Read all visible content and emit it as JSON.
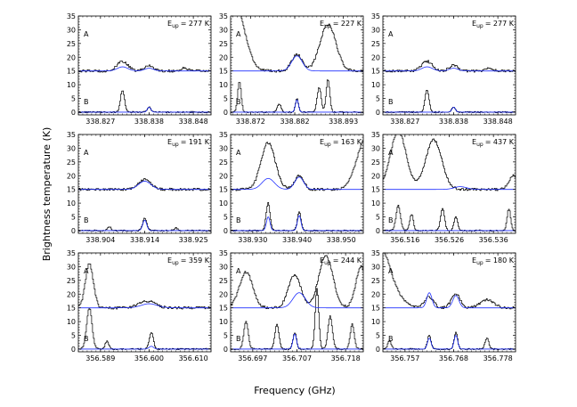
{
  "figure": {
    "xlabel": "Frequency (GHz)",
    "ylabel": "Brightness temperature (K)"
  },
  "colors": {
    "observed": "#000000",
    "model": "#1f2fff",
    "axes": "#000000"
  },
  "chart_data": [
    {
      "type": "line",
      "eup_base": "E",
      "eup_sub": "up",
      "eup_value": "= 277 K",
      "xlim": [
        338.822,
        338.852
      ],
      "ylim": [
        -1,
        35
      ],
      "xticks": [
        "338.827",
        "338.838",
        "338.848"
      ],
      "yticks": [
        "0",
        "5",
        "10",
        "15",
        "20",
        "25",
        "30",
        "35"
      ],
      "label_a": "A",
      "label_b": "B",
      "offset_a": 15,
      "lines_a": [
        [
          338.832,
          3.5,
          0.0012
        ],
        [
          338.838,
          2.0,
          0.001
        ],
        [
          338.846,
          1.0,
          0.0008
        ]
      ],
      "lines_b": [
        [
          338.832,
          8.0,
          0.00045
        ],
        [
          338.838,
          2.0,
          0.0004
        ]
      ],
      "model_a": [
        [
          338.832,
          1.5,
          0.0012
        ],
        [
          338.838,
          1.0,
          0.001
        ]
      ],
      "model_b": [
        [
          338.838,
          1.8,
          0.0004
        ]
      ]
    },
    {
      "type": "line",
      "eup_base": "E",
      "eup_sub": "up",
      "eup_value": "= 227 K",
      "xlim": [
        338.8675,
        338.8975
      ],
      "ylim": [
        -1,
        35
      ],
      "xticks": [
        "338.872",
        "338.882",
        "338.893"
      ],
      "yticks": [
        "0",
        "5",
        "10",
        "15",
        "20",
        "25",
        "30",
        "35"
      ],
      "label_a": "A",
      "label_b": "B",
      "offset_a": 15,
      "lines_a": [
        [
          338.8685,
          24,
          0.0022
        ],
        [
          338.8825,
          6,
          0.0012
        ],
        [
          338.8895,
          17,
          0.0018
        ]
      ],
      "lines_b": [
        [
          338.8695,
          11,
          0.0004
        ],
        [
          338.8785,
          3,
          0.0004
        ],
        [
          338.8825,
          5,
          0.00035
        ],
        [
          338.8875,
          9,
          0.00045
        ],
        [
          338.8895,
          12,
          0.0004
        ]
      ],
      "model_a": [
        [
          338.8825,
          5.5,
          0.0012
        ]
      ],
      "model_b": [
        [
          338.8825,
          4.5,
          0.00035
        ]
      ]
    },
    {
      "type": "line",
      "eup_base": "E",
      "eup_sub": "up",
      "eup_value": "= 277 K",
      "xlim": [
        338.822,
        338.852
      ],
      "ylim": [
        -1,
        35
      ],
      "xticks": [
        "338.827",
        "338.838",
        "338.848"
      ],
      "yticks": [
        "0",
        "5",
        "10",
        "15",
        "20",
        "25",
        "30",
        "35"
      ],
      "label_a": "A",
      "label_b": "B",
      "offset_a": 15,
      "lines_a": [
        [
          338.832,
          3.5,
          0.0012
        ],
        [
          338.838,
          2.0,
          0.001
        ],
        [
          338.846,
          1.0,
          0.0008
        ]
      ],
      "lines_b": [
        [
          338.832,
          8.0,
          0.00045
        ],
        [
          338.838,
          2.0,
          0.0004
        ]
      ],
      "model_a": [
        [
          338.832,
          1.5,
          0.0012
        ],
        [
          338.838,
          1.0,
          0.001
        ]
      ],
      "model_b": [
        [
          338.838,
          1.8,
          0.0004
        ]
      ]
    },
    {
      "type": "line",
      "eup_base": "E",
      "eup_sub": "up",
      "eup_value": "= 191 K",
      "xlim": [
        338.899,
        338.929
      ],
      "ylim": [
        -1,
        35
      ],
      "xticks": [
        "338.904",
        "338.914",
        "338.925"
      ],
      "yticks": [
        "0",
        "5",
        "10",
        "15",
        "20",
        "25",
        "30",
        "35"
      ],
      "label_a": "A",
      "label_b": "B",
      "offset_a": 15,
      "lines_a": [
        [
          338.914,
          3.5,
          0.0014
        ]
      ],
      "lines_b": [
        [
          338.914,
          4.5,
          0.00045
        ],
        [
          338.906,
          1.5,
          0.0004
        ],
        [
          338.921,
          1.0,
          0.0004
        ]
      ],
      "model_a": [
        [
          338.914,
          3.0,
          0.0014
        ]
      ],
      "model_b": [
        [
          338.914,
          3.8,
          0.00045
        ]
      ]
    },
    {
      "type": "line",
      "eup_base": "E",
      "eup_sub": "up",
      "eup_value": "= 163 K",
      "xlim": [
        338.925,
        338.955
      ],
      "ylim": [
        -1,
        35
      ],
      "xticks": [
        "338.930",
        "338.940",
        "338.950"
      ],
      "yticks": [
        "0",
        "5",
        "10",
        "15",
        "20",
        "25",
        "30",
        "35"
      ],
      "label_a": "A",
      "label_b": "B",
      "offset_a": 15,
      "lines_a": [
        [
          338.9335,
          17,
          0.0016
        ],
        [
          338.9405,
          5,
          0.001
        ],
        [
          338.9555,
          18,
          0.002
        ]
      ],
      "lines_b": [
        [
          338.9335,
          10,
          0.00045
        ],
        [
          338.9405,
          7,
          0.0004
        ]
      ],
      "model_a": [
        [
          338.9335,
          4,
          0.0014
        ],
        [
          338.9405,
          4.5,
          0.001
        ]
      ],
      "model_b": [
        [
          338.9335,
          5,
          0.0004
        ],
        [
          338.9405,
          5.5,
          0.0004
        ]
      ]
    },
    {
      "type": "line",
      "eup_base": "E",
      "eup_sub": "up",
      "eup_value": "= 437 K",
      "xlim": [
        356.511,
        356.541
      ],
      "ylim": [
        -1,
        35
      ],
      "xticks": [
        "356.516",
        "356.526",
        "356.536"
      ],
      "yticks": [
        "0",
        "5",
        "10",
        "15",
        "20",
        "25",
        "30",
        "35"
      ],
      "label_a": "A",
      "label_b": "B",
      "offset_a": 15,
      "lines_a": [
        [
          356.5145,
          21,
          0.0018
        ],
        [
          356.5225,
          18,
          0.0018
        ],
        [
          356.5405,
          5,
          0.001
        ]
      ],
      "lines_b": [
        [
          356.5145,
          9,
          0.0005
        ],
        [
          356.5175,
          6,
          0.0004
        ],
        [
          356.5245,
          8,
          0.00045
        ],
        [
          356.5275,
          5,
          0.0004
        ],
        [
          356.5395,
          8,
          0.0004
        ]
      ],
      "model_a": [
        [
          356.5285,
          1.0,
          0.0014
        ]
      ],
      "model_b": []
    },
    {
      "type": "line",
      "eup_base": "E",
      "eup_sub": "up",
      "eup_value": "= 359 K",
      "xlim": [
        356.584,
        356.614
      ],
      "ylim": [
        -1,
        35
      ],
      "xticks": [
        "356.589",
        "356.600",
        "356.610"
      ],
      "yticks": [
        "0",
        "5",
        "10",
        "15",
        "20",
        "25",
        "30",
        "35"
      ],
      "label_a": "A",
      "label_b": "B",
      "offset_a": 15,
      "lines_a": [
        [
          356.5865,
          16,
          0.0009
        ],
        [
          356.5995,
          2.5,
          0.0018
        ]
      ],
      "lines_b": [
        [
          356.5865,
          15,
          0.0006
        ],
        [
          356.5905,
          3,
          0.0004
        ],
        [
          356.6005,
          6,
          0.00045
        ]
      ],
      "model_a": [
        [
          356.6,
          1.5,
          0.0018
        ]
      ],
      "model_b": [
        [
          356.6005,
          1.0,
          0.0005
        ]
      ]
    },
    {
      "type": "line",
      "eup_base": "E",
      "eup_sub": "up",
      "eup_value": "= 244 K",
      "xlim": [
        356.692,
        356.722
      ],
      "ylim": [
        -1,
        35
      ],
      "xticks": [
        "356.697",
        "356.707",
        "356.718"
      ],
      "yticks": [
        "0",
        "5",
        "10",
        "15",
        "20",
        "25",
        "30",
        "35"
      ],
      "label_a": "A",
      "label_b": "B",
      "offset_a": 15,
      "lines_a": [
        [
          356.6955,
          13,
          0.0015
        ],
        [
          356.7065,
          12,
          0.0014
        ],
        [
          356.7135,
          19,
          0.0016
        ],
        [
          356.7215,
          15,
          0.0012
        ]
      ],
      "lines_b": [
        [
          356.6955,
          10,
          0.0005
        ],
        [
          356.7025,
          9,
          0.00045
        ],
        [
          356.7065,
          6,
          0.0004
        ],
        [
          356.7115,
          22,
          0.0004
        ],
        [
          356.7145,
          12,
          0.0005
        ],
        [
          356.7195,
          9,
          0.00045
        ]
      ],
      "model_a": [
        [
          356.7075,
          5.5,
          0.0014
        ]
      ],
      "model_b": [
        [
          356.7065,
          5.5,
          0.0004
        ]
      ]
    },
    {
      "type": "line",
      "eup_base": "E",
      "eup_sub": "up",
      "eup_value": "= 180 K",
      "xlim": [
        356.752,
        356.782
      ],
      "ylim": [
        -1,
        35
      ],
      "xticks": [
        "356.757",
        "356.768",
        "356.778"
      ],
      "yticks": [
        "0",
        "5",
        "10",
        "15",
        "20",
        "25",
        "30",
        "35"
      ],
      "label_a": "A",
      "label_b": "B",
      "offset_a": 15,
      "lines_a": [
        [
          356.7505,
          25,
          0.003
        ],
        [
          356.7625,
          4,
          0.001
        ],
        [
          356.7685,
          5,
          0.001
        ],
        [
          356.7755,
          3,
          0.0015
        ]
      ],
      "lines_b": [
        [
          356.7535,
          3,
          0.0004
        ],
        [
          356.7625,
          5,
          0.0004
        ],
        [
          356.7685,
          6,
          0.0004
        ],
        [
          356.7755,
          4,
          0.00045
        ]
      ],
      "model_a": [
        [
          356.7625,
          5.5,
          0.0006
        ],
        [
          356.7685,
          4.5,
          0.0007
        ]
      ],
      "model_b": [
        [
          356.7625,
          4.0,
          0.0004
        ],
        [
          356.7685,
          5.0,
          0.0004
        ]
      ]
    }
  ]
}
